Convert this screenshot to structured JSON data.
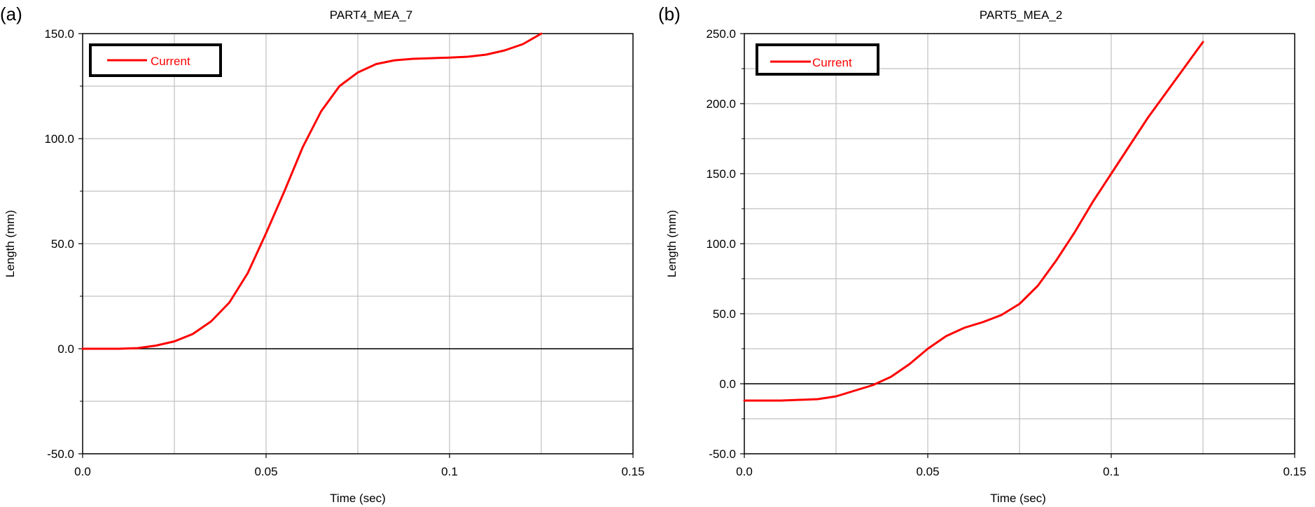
{
  "chart_data": [
    {
      "type": "line",
      "panel_label": "(a)",
      "title": "PART4_MEA_7",
      "xlabel": "Time (sec)",
      "ylabel": "Length (mm)",
      "xlim": [
        0.0,
        0.15
      ],
      "ylim": [
        -50.0,
        150.0
      ],
      "x_ticks": [
        0.0,
        0.05,
        0.1,
        0.15
      ],
      "x_tick_labels": [
        "0.0",
        "0.05",
        "0.1",
        "0.15"
      ],
      "y_ticks": [
        -50.0,
        0.0,
        50.0,
        100.0,
        150.0
      ],
      "y_tick_labels": [
        "-50.0",
        "0.0",
        "50.0",
        "100.0",
        "150.0"
      ],
      "grid": true,
      "legend": {
        "position": "top-left",
        "entries": [
          "Current"
        ]
      },
      "series": [
        {
          "name": "Current",
          "color": "#ff0000",
          "x": [
            0.0,
            0.01,
            0.015,
            0.02,
            0.025,
            0.03,
            0.035,
            0.04,
            0.045,
            0.05,
            0.055,
            0.06,
            0.065,
            0.07,
            0.075,
            0.08,
            0.085,
            0.09,
            0.095,
            0.1,
            0.105,
            0.11,
            0.115,
            0.12,
            0.125
          ],
          "y": [
            0.0,
            0.0,
            0.3,
            1.5,
            3.5,
            7.0,
            13.0,
            22.0,
            36.0,
            55.0,
            75.0,
            96.0,
            113.0,
            125.0,
            131.5,
            135.5,
            137.3,
            138.0,
            138.3,
            138.6,
            139.0,
            140.0,
            142.0,
            145.0,
            150.0
          ]
        }
      ]
    },
    {
      "type": "line",
      "panel_label": "(b)",
      "title": "PART5_MEA_2",
      "xlabel": "Time (sec)",
      "ylabel": "Length (mm)",
      "xlim": [
        0.0,
        0.15
      ],
      "ylim": [
        -50.0,
        250.0
      ],
      "x_ticks": [
        0.0,
        0.05,
        0.1,
        0.15
      ],
      "x_tick_labels": [
        "0.0",
        "0.05",
        "0.1",
        "0.15"
      ],
      "y_ticks": [
        -50.0,
        0.0,
        50.0,
        100.0,
        150.0,
        200.0,
        250.0
      ],
      "y_tick_labels": [
        "-50.0",
        "0.0",
        "50.0",
        "100.0",
        "150.0",
        "200.0",
        "250.0"
      ],
      "grid": true,
      "legend": {
        "position": "top-left",
        "entries": [
          "Current"
        ]
      },
      "series": [
        {
          "name": "Current",
          "color": "#ff0000",
          "x": [
            0.0,
            0.01,
            0.02,
            0.025,
            0.03,
            0.035,
            0.04,
            0.045,
            0.05,
            0.055,
            0.06,
            0.065,
            0.07,
            0.075,
            0.08,
            0.085,
            0.09,
            0.095,
            0.1,
            0.105,
            0.11,
            0.115,
            0.12,
            0.125
          ],
          "y": [
            -12.0,
            -12.0,
            -11.0,
            -9.0,
            -5.0,
            -1.0,
            5.0,
            14.0,
            25.0,
            34.0,
            40.0,
            44.0,
            49.0,
            57.0,
            70.0,
            88.0,
            108.0,
            130.0,
            150.0,
            170.0,
            190.0,
            208.0,
            226.0,
            244.0
          ]
        }
      ]
    }
  ]
}
